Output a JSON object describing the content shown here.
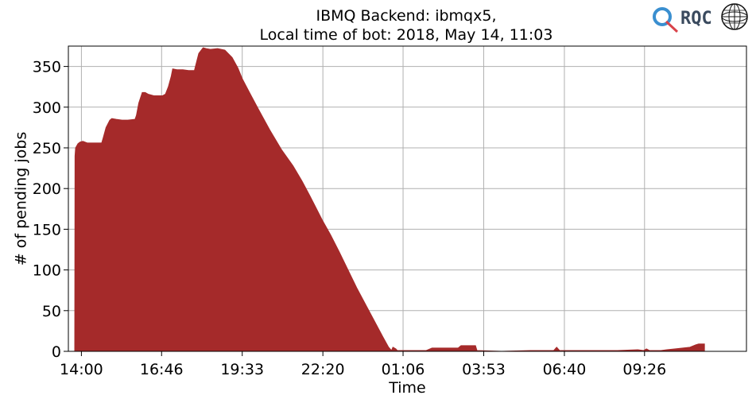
{
  "chart_data": {
    "type": "area",
    "title_lines": [
      "IBMQ Backend: ibmqx5,",
      "Local time of bot: 2018, May 14, 11:03"
    ],
    "xlabel": "Time",
    "ylabel": "# of pending jobs",
    "x_unit": "hours since 14:00",
    "xlim": [
      -0.45,
      22.95
    ],
    "ylim": [
      0,
      375
    ],
    "x_ticks": [
      {
        "value": 0,
        "label": "14:00"
      },
      {
        "value": 2.767,
        "label": "16:46"
      },
      {
        "value": 5.55,
        "label": "19:33"
      },
      {
        "value": 8.333,
        "label": "22:20"
      },
      {
        "value": 11.1,
        "label": "01:06"
      },
      {
        "value": 13.883,
        "label": "03:53"
      },
      {
        "value": 16.667,
        "label": "06:40"
      },
      {
        "value": 19.433,
        "label": "09:26"
      }
    ],
    "y_ticks": [
      0,
      50,
      100,
      150,
      200,
      250,
      300,
      350
    ],
    "grid": true,
    "color": "#a52a2a",
    "series": [
      {
        "x": [
          -0.23,
          -0.22,
          -0.2,
          -0.12,
          -0.05,
          0.05,
          0.2,
          0.35,
          0.55,
          0.7,
          0.75,
          0.85,
          0.98,
          1.05,
          1.2,
          1.4,
          1.6,
          1.85,
          1.9,
          1.98,
          2.1,
          2.2,
          2.3,
          2.5,
          2.8,
          2.9,
          3.0,
          3.1,
          3.15,
          3.3,
          3.5,
          3.7,
          3.9,
          3.95,
          4.05,
          4.2,
          4.3,
          4.45,
          4.7,
          4.95,
          5.2,
          5.4,
          5.55,
          5.8,
          6.1,
          6.5,
          6.9,
          7.3,
          7.6,
          7.9,
          8.1,
          8.3,
          8.6,
          8.9,
          9.2,
          9.5,
          9.8,
          10.1,
          10.4,
          10.6,
          10.7,
          10.75,
          10.85,
          10.9,
          11.0,
          11.2,
          11.5,
          11.9,
          12.1,
          12.5,
          13.0,
          13.1,
          13.6,
          13.65,
          14.5,
          15.5,
          16.3,
          16.4,
          16.5,
          16.6,
          17.0,
          18.0,
          18.5,
          19.2,
          19.4,
          19.5,
          19.6,
          20.0,
          20.2,
          20.5,
          21.0,
          21.2,
          21.3,
          21.5
        ],
        "y": [
          0,
          240,
          250,
          255,
          257,
          258,
          256,
          256,
          256,
          256,
          262,
          275,
          284,
          286,
          285,
          284,
          284,
          285,
          290,
          305,
          318,
          318,
          316,
          314,
          314,
          316,
          325,
          338,
          347,
          346,
          346,
          345,
          345,
          352,
          366,
          373,
          372,
          371,
          372,
          370,
          361,
          348,
          335,
          318,
          298,
          272,
          248,
          228,
          210,
          190,
          176,
          162,
          143,
          122,
          100,
          78,
          58,
          38,
          18,
          5,
          1,
          5,
          3,
          1,
          1,
          1,
          1,
          1,
          4,
          4,
          4,
          7,
          7,
          1,
          0,
          1,
          1,
          5,
          1,
          1,
          1,
          1,
          1,
          2,
          1,
          3,
          1,
          1,
          2,
          3,
          5,
          8,
          9,
          9
        ]
      }
    ]
  },
  "logo": {
    "text": "RQC"
  }
}
